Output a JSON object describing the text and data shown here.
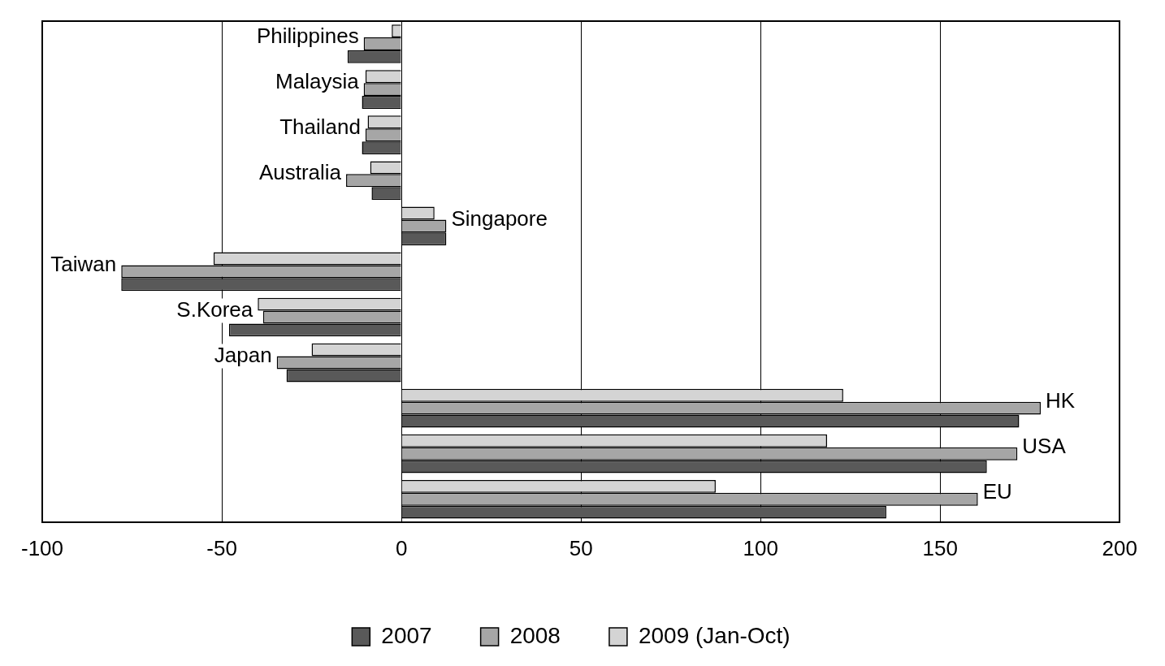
{
  "chart_data": {
    "type": "bar",
    "orientation": "horizontal",
    "categories": [
      "Philippines",
      "Malaysia",
      "Thailand",
      "Australia",
      "Singapore",
      "Taiwan",
      "S.Korea",
      "Japan",
      "HK",
      "USA",
      "EU"
    ],
    "series": [
      {
        "name": "2009 (Jan-Oct)",
        "color": "#d4d4d4",
        "values": [
          -2.7,
          -10,
          -9.4,
          -8.7,
          9.2,
          -52.3,
          -40,
          -25,
          123,
          118.5,
          87.5
        ]
      },
      {
        "name": "2008",
        "color": "#a6a6a6",
        "values": [
          -10.5,
          -10.5,
          -10,
          -15.4,
          12.5,
          -78,
          -38.5,
          -34.7,
          178,
          171.5,
          160.5
        ]
      },
      {
        "name": "2007",
        "color": "#595959",
        "values": [
          -15,
          -11,
          -11,
          -8.3,
          12.5,
          -78,
          -48,
          -32,
          172,
          163,
          135
        ]
      }
    ],
    "xlim": [
      -100,
      200
    ],
    "xticks": [
      -100,
      -50,
      0,
      50,
      100,
      150,
      200
    ],
    "grid": "x",
    "legend": "bottom"
  }
}
